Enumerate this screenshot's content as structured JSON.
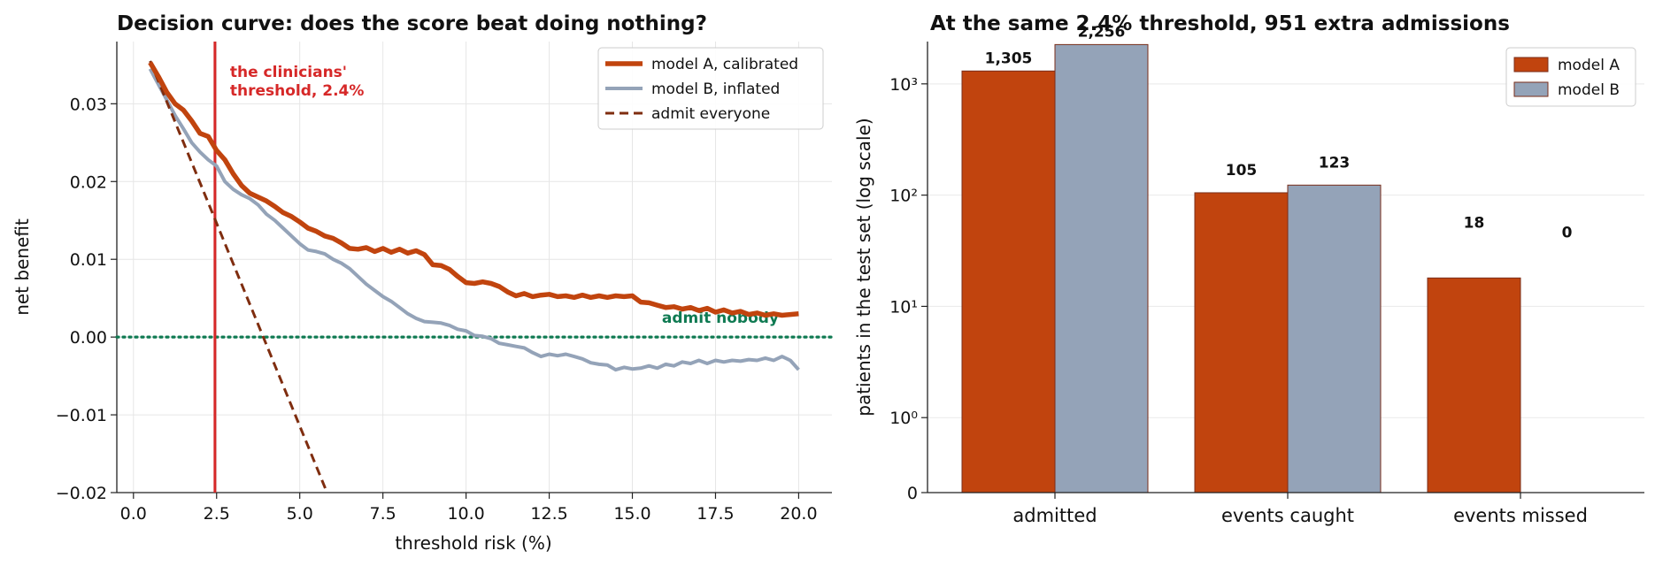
{
  "chart_data": [
    {
      "type": "line",
      "title": "Decision curve: does the score beat doing nothing?",
      "xlabel": "threshold risk (%)",
      "ylabel": "net benefit",
      "xlim": [
        -0.5,
        21
      ],
      "ylim": [
        -0.02,
        0.038
      ],
      "x_ticks": [
        0,
        2.5,
        5,
        7.5,
        10,
        12.5,
        15,
        17.5,
        20
      ],
      "x_tick_labels": [
        "0.0",
        "2.5",
        "5.0",
        "7.5",
        "10.0",
        "12.5",
        "15.0",
        "17.5",
        "20.0"
      ],
      "y_ticks": [
        -0.02,
        -0.01,
        0,
        0.01,
        0.02,
        0.03
      ],
      "y_tick_labels": [
        "−0.02",
        "−0.01",
        "0.00",
        "0.01",
        "0.02",
        "0.03"
      ],
      "grid": true,
      "legend_position": "top-right",
      "series": [
        {
          "name": "model A, calibrated",
          "color": "#c1440e",
          "style": "solid",
          "x": [
            0.5,
            0.75,
            1.0,
            1.25,
            1.5,
            1.75,
            2.0,
            2.25,
            2.5,
            2.75,
            3.0,
            3.25,
            3.5,
            3.75,
            4.0,
            4.25,
            4.5,
            4.75,
            5.0,
            5.25,
            5.5,
            5.75,
            6.0,
            6.25,
            6.5,
            6.75,
            7.0,
            7.25,
            7.5,
            7.75,
            8.0,
            8.25,
            8.5,
            8.75,
            9.0,
            9.25,
            9.5,
            9.75,
            10.0,
            10.25,
            10.5,
            10.75,
            11.0,
            11.25,
            11.5,
            11.75,
            12.0,
            12.25,
            12.5,
            12.75,
            13.0,
            13.25,
            13.5,
            13.75,
            14.0,
            14.25,
            14.5,
            14.75,
            15.0,
            15.25,
            15.5,
            15.75,
            16.0,
            16.25,
            16.5,
            16.75,
            17.0,
            17.25,
            17.5,
            17.75,
            18.0,
            18.25,
            18.5,
            18.75,
            19.0,
            19.25,
            19.5,
            19.75,
            20.0
          ],
          "y": [
            0.0353,
            0.0335,
            0.0315,
            0.03,
            0.0292,
            0.0278,
            0.0262,
            0.0258,
            0.024,
            0.0228,
            0.021,
            0.0195,
            0.0185,
            0.018,
            0.0175,
            0.0168,
            0.016,
            0.0155,
            0.0148,
            0.014,
            0.0136,
            0.013,
            0.0127,
            0.0121,
            0.0114,
            0.0113,
            0.0115,
            0.011,
            0.0114,
            0.0109,
            0.0113,
            0.0108,
            0.0111,
            0.0106,
            0.0093,
            0.0092,
            0.0087,
            0.0078,
            0.007,
            0.0069,
            0.0071,
            0.0069,
            0.0065,
            0.0058,
            0.0053,
            0.0056,
            0.0052,
            0.0054,
            0.0055,
            0.0052,
            0.0053,
            0.0051,
            0.0054,
            0.0051,
            0.0053,
            0.0051,
            0.0053,
            0.0052,
            0.0053,
            0.0045,
            0.0044,
            0.0041,
            0.0038,
            0.0039,
            0.0036,
            0.0038,
            0.0034,
            0.0037,
            0.0032,
            0.0035,
            0.0031,
            0.0033,
            0.0029,
            0.0031,
            0.0028,
            0.003,
            0.0028,
            0.0029,
            0.003
          ]
        },
        {
          "name": "model B, inflated",
          "color": "#94a3b8",
          "style": "solid",
          "x": [
            0.5,
            0.75,
            1.0,
            1.25,
            1.5,
            1.75,
            2.0,
            2.25,
            2.5,
            2.75,
            3.0,
            3.25,
            3.5,
            3.75,
            4.0,
            4.25,
            4.5,
            4.75,
            5.0,
            5.25,
            5.5,
            5.75,
            6.0,
            6.25,
            6.5,
            6.75,
            7.0,
            7.25,
            7.5,
            7.75,
            8.0,
            8.25,
            8.5,
            8.75,
            9.0,
            9.25,
            9.5,
            9.75,
            10.0,
            10.25,
            10.5,
            10.75,
            11.0,
            11.25,
            11.5,
            11.75,
            12.0,
            12.25,
            12.5,
            12.75,
            13.0,
            13.25,
            13.5,
            13.75,
            14.0,
            14.25,
            14.5,
            14.75,
            15.0,
            15.25,
            15.5,
            15.75,
            16.0,
            16.25,
            16.5,
            16.75,
            17.0,
            17.25,
            17.5,
            17.75,
            18.0,
            18.25,
            18.5,
            18.75,
            19.0,
            19.25,
            19.5,
            19.75,
            20.0
          ],
          "y": [
            0.0345,
            0.0325,
            0.0305,
            0.0285,
            0.0268,
            0.025,
            0.0238,
            0.0228,
            0.022,
            0.02,
            0.019,
            0.0183,
            0.0178,
            0.017,
            0.0158,
            0.015,
            0.014,
            0.013,
            0.012,
            0.0112,
            0.011,
            0.0107,
            0.01,
            0.0095,
            0.0088,
            0.0078,
            0.0068,
            0.006,
            0.0052,
            0.0046,
            0.0038,
            0.003,
            0.0024,
            0.002,
            0.0019,
            0.0018,
            0.0015,
            0.001,
            0.0008,
            0.0002,
            0.0001,
            -0.0002,
            -0.0008,
            -0.001,
            -0.0012,
            -0.0014,
            -0.002,
            -0.0025,
            -0.0022,
            -0.0024,
            -0.0022,
            -0.0025,
            -0.0028,
            -0.0033,
            -0.0035,
            -0.0036,
            -0.0042,
            -0.0039,
            -0.0041,
            -0.004,
            -0.0037,
            -0.004,
            -0.0035,
            -0.0037,
            -0.0032,
            -0.0034,
            -0.003,
            -0.0034,
            -0.003,
            -0.0032,
            -0.003,
            -0.0031,
            -0.0029,
            -0.003,
            -0.0027,
            -0.003,
            -0.0025,
            -0.003,
            -0.0042
          ]
        },
        {
          "name": "admit everyone",
          "color": "#7f2d0f",
          "style": "dashed",
          "x": [
            0.5,
            5.8
          ],
          "y": [
            0.0355,
            -0.0198
          ]
        }
      ],
      "reference_lines": [
        {
          "label": "admit nobody",
          "axis": "y",
          "value": 0,
          "color": "#0f7a52",
          "style": "dotted"
        },
        {
          "label": "the clinicians' threshold, 2.4%",
          "label_lines": [
            "the clinicians'",
            "threshold, 2.4%"
          ],
          "axis": "x",
          "value": 2.45,
          "color": "#d62828",
          "style": "solid"
        }
      ]
    },
    {
      "type": "bar",
      "title": "At the same 2.4% threshold, 951 extra admissions",
      "ylabel": "patients in the test set (log scale)",
      "yscale": "symlog",
      "ylim": [
        0,
        2400
      ],
      "y_ticks": [
        0,
        1,
        10,
        100,
        1000
      ],
      "y_tick_labels": [
        "0",
        "10⁰",
        "10¹",
        "10²",
        "10³"
      ],
      "categories": [
        "admitted",
        "events caught",
        "events missed"
      ],
      "legend_position": "top-right",
      "grid": true,
      "series": [
        {
          "name": "model A",
          "color": "#c1440e",
          "values": [
            1305,
            105,
            18
          ],
          "value_labels": [
            "1,305",
            "105",
            "18"
          ]
        },
        {
          "name": "model B",
          "color": "#94a3b8",
          "values": [
            2256,
            123,
            0
          ],
          "value_labels": [
            "2,256",
            "123",
            "0"
          ]
        }
      ]
    }
  ]
}
